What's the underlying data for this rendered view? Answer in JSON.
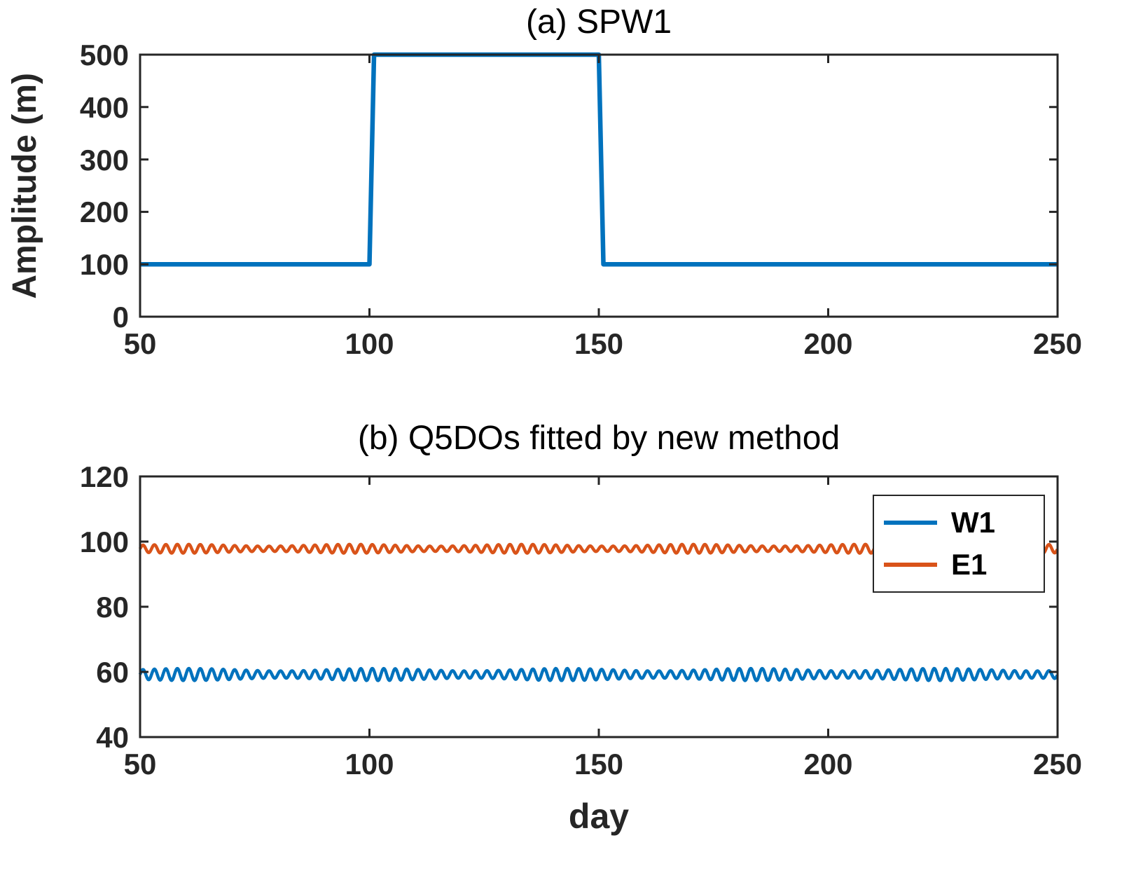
{
  "colors": {
    "blue": "#0072BD",
    "orange": "#D95319",
    "axis": "#262626",
    "background": "#FFFFFF"
  },
  "chart_data": [
    {
      "type": "line",
      "title": "(a) SPW1",
      "xlabel": "",
      "ylabel": "Amplitude (m)",
      "xlim": [
        50,
        250
      ],
      "ylim": [
        0,
        500
      ],
      "xticks": [
        50,
        100,
        150,
        200,
        250
      ],
      "yticks": [
        0,
        100,
        200,
        300,
        400,
        500
      ],
      "grid": false,
      "legend": null,
      "series": [
        {
          "name": "SPW1",
          "color": "#0072BD",
          "x": [
            50,
            100,
            101,
            150,
            151,
            250
          ],
          "y": [
            100,
            100,
            500,
            500,
            100,
            100
          ]
        }
      ]
    },
    {
      "type": "line",
      "title": "(b) Q5DOs fitted by new method",
      "xlabel": "day",
      "ylabel": "",
      "xlim": [
        50,
        250
      ],
      "ylim": [
        40,
        120
      ],
      "xticks": [
        50,
        100,
        150,
        200,
        250
      ],
      "yticks": [
        40,
        60,
        80,
        100,
        120
      ],
      "grid": false,
      "legend": {
        "position": "northeast",
        "entries": [
          "W1",
          "E1"
        ]
      },
      "series": [
        {
          "name": "W1",
          "color": "#0072BD",
          "oscillation": {
            "mean": 59.2,
            "amplitude": 1.5,
            "period_days": 2.5,
            "am_depth": 0.25,
            "am_period_days": 41
          }
        },
        {
          "name": "E1",
          "color": "#D95319",
          "oscillation": {
            "mean": 97.8,
            "amplitude": 1.1,
            "period_days": 2.5,
            "am_depth": 0.25,
            "am_period_days": 37
          }
        }
      ]
    }
  ]
}
